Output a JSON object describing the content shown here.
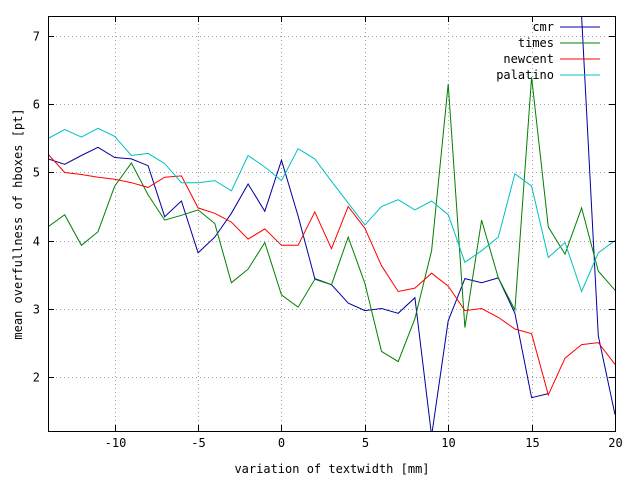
{
  "chart_data": {
    "type": "line",
    "title": "",
    "xlabel": "variation of textwidth [mm]",
    "ylabel": "mean overfullness of hboxes [pt]",
    "xlim": [
      -14,
      20
    ],
    "ylim": [
      1.2,
      7.3
    ],
    "grid": true,
    "legend_position": "top-right",
    "x_ticks": [
      -10,
      -5,
      0,
      5,
      10,
      15,
      20
    ],
    "x_tick_labels": [
      "-10",
      "-5",
      "0",
      "5",
      "10",
      "15",
      "20"
    ],
    "y_ticks": [
      2,
      3,
      4,
      5,
      6,
      7
    ],
    "y_tick_labels": [
      "2",
      "3",
      "4",
      "5",
      "6",
      "7"
    ],
    "x": [
      -14,
      -13,
      -12,
      -11,
      -10,
      -9,
      -8,
      -7,
      -6,
      -5,
      -4,
      -3,
      -2,
      -1,
      0,
      1,
      2,
      3,
      4,
      5,
      6,
      7,
      8,
      9,
      10,
      11,
      12,
      13,
      14,
      15,
      16,
      17,
      18,
      19,
      20
    ],
    "series": [
      {
        "name": "cmr",
        "color": "#0000a0",
        "values": [
          5.2,
          5.12,
          5.25,
          5.37,
          5.22,
          5.2,
          5.1,
          4.35,
          4.58,
          3.82,
          4.05,
          4.4,
          4.83,
          4.43,
          5.18,
          4.36,
          3.44,
          3.35,
          3.08,
          2.97,
          3.0,
          2.93,
          3.16,
          1.13,
          2.82,
          3.44,
          3.38,
          3.45,
          2.93,
          1.69,
          1.75,
          null,
          7.3,
          2.6,
          1.44
        ]
      },
      {
        "name": "times",
        "color": "#008000",
        "values": [
          4.2,
          4.38,
          3.93,
          4.13,
          4.8,
          5.14,
          4.67,
          4.3,
          4.37,
          4.45,
          4.25,
          3.38,
          3.58,
          3.97,
          3.2,
          3.02,
          3.43,
          3.35,
          4.05,
          3.37,
          2.37,
          2.22,
          2.85,
          3.85,
          6.3,
          2.72,
          4.3,
          3.45,
          2.98,
          6.4,
          4.2,
          3.8,
          4.48,
          3.55,
          3.27
        ]
      },
      {
        "name": "newcent",
        "color": "#ff0000",
        "values": [
          5.27,
          5.0,
          4.97,
          4.93,
          4.9,
          4.85,
          4.78,
          4.93,
          4.95,
          4.48,
          4.4,
          4.27,
          4.02,
          4.17,
          3.93,
          3.93,
          4.42,
          3.88,
          4.5,
          4.18,
          3.63,
          3.25,
          3.3,
          3.52,
          3.33,
          2.97,
          3.0,
          2.87,
          2.7,
          2.63,
          1.73,
          2.27,
          2.47,
          2.5,
          2.18
        ]
      },
      {
        "name": "palatino",
        "color": "#00c0c0",
        "values": [
          5.5,
          5.63,
          5.52,
          5.65,
          5.53,
          5.25,
          5.28,
          5.13,
          4.85,
          4.85,
          4.88,
          4.73,
          5.25,
          5.08,
          4.88,
          5.35,
          5.2,
          4.87,
          4.55,
          4.23,
          4.5,
          4.6,
          4.45,
          4.58,
          4.38,
          3.68,
          3.85,
          4.05,
          4.98,
          4.8,
          3.75,
          3.97,
          3.25,
          3.82,
          4.0
        ]
      }
    ]
  }
}
